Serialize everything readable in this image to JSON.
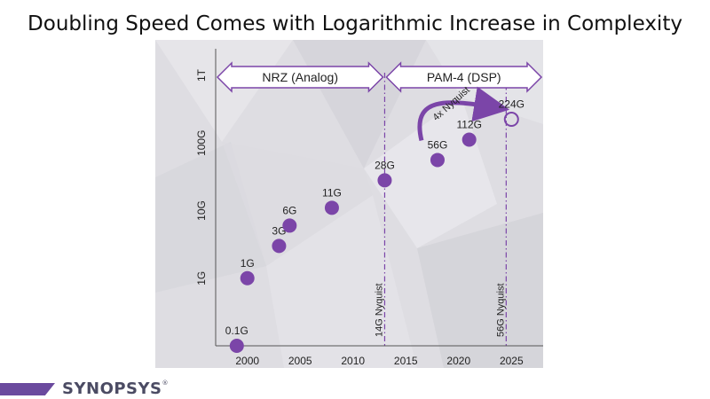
{
  "page": {
    "title": "Doubling Speed Comes with Logarithmic Increase in Complexity",
    "logo_text": "SYNOPSYS",
    "logo_mark": "®"
  },
  "colors": {
    "accent": "#7b45a8",
    "background_panel": "#dedde2",
    "text": "#222222",
    "footer_bar": "#6b4a9e"
  },
  "chart_data": {
    "type": "scatter",
    "title": "Doubling Speed Comes with Logarithmic Increase in Complexity",
    "xlabel": "",
    "ylabel": "",
    "xlim": [
      1997,
      2028
    ],
    "ylim": [
      0.1,
      1000
    ],
    "y_scale": "log",
    "x_ticks": [
      2000,
      2005,
      2010,
      2015,
      2020,
      2025
    ],
    "y_ticks": [
      {
        "value": 1,
        "label": "1G"
      },
      {
        "value": 10,
        "label": "10G"
      },
      {
        "value": 100,
        "label": "100G"
      },
      {
        "value": 1000,
        "label": "1T"
      }
    ],
    "points": [
      {
        "x": 1999,
        "y": 0.1,
        "label": "0.1G"
      },
      {
        "x": 2000,
        "y": 1,
        "label": "1G"
      },
      {
        "x": 2003,
        "y": 3,
        "label": "3G"
      },
      {
        "x": 2004,
        "y": 6,
        "label": "6G"
      },
      {
        "x": 2008,
        "y": 11,
        "label": "11G"
      },
      {
        "x": 2013,
        "y": 28,
        "label": "28G"
      },
      {
        "x": 2018,
        "y": 56,
        "label": "56G"
      },
      {
        "x": 2021,
        "y": 112,
        "label": "112G"
      },
      {
        "x": 2025,
        "y": 224,
        "label": "224G",
        "hollow": true
      }
    ],
    "vlines": [
      {
        "x": 2013,
        "label": "14G Nyquist"
      },
      {
        "x": 2024.5,
        "label": "56G Nyquist"
      }
    ],
    "regions": [
      {
        "from": 1997,
        "to": 2013,
        "label": "NRZ (Analog)"
      },
      {
        "from": 2013,
        "to": 2028,
        "label": "PAM-4 (DSP)"
      }
    ],
    "annotation": {
      "text": "4x Nyquist",
      "from_x": 2018,
      "from_y": 56,
      "to_x": 2025,
      "to_y": 224
    }
  }
}
